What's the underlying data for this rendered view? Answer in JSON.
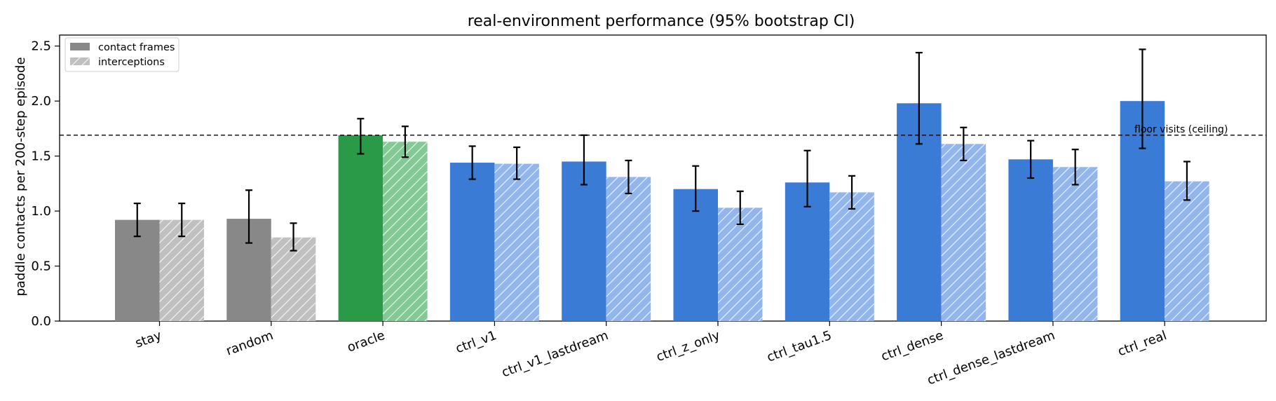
{
  "chart_data": {
    "type": "bar",
    "title": "real-environment performance (95% bootstrap CI)",
    "xlabel": "",
    "ylabel": "paddle contacts per 200-step episode",
    "ylim": [
      0,
      2.6
    ],
    "yticks": [
      "0.0",
      "0.5",
      "1.0",
      "1.5",
      "2.0",
      "2.5"
    ],
    "categories": [
      "stay",
      "random",
      "oracle",
      "ctrl_v1",
      "ctrl_v1_lastdream",
      "ctrl_z_only",
      "ctrl_tau1.5",
      "ctrl_dense",
      "ctrl_dense_lastdream",
      "ctrl_real"
    ],
    "series": [
      {
        "name": "contact frames",
        "values": [
          0.92,
          0.93,
          1.69,
          1.44,
          1.45,
          1.2,
          1.26,
          1.98,
          1.47,
          2.0
        ],
        "ci_low": [
          0.77,
          0.71,
          1.52,
          1.29,
          1.24,
          1.0,
          1.04,
          1.61,
          1.3,
          1.57
        ],
        "ci_high": [
          1.07,
          1.19,
          1.84,
          1.59,
          1.69,
          1.41,
          1.55,
          2.44,
          1.64,
          2.47
        ],
        "colors": [
          "#888888",
          "#888888",
          "#2a9a47",
          "#3a7bd5",
          "#3a7bd5",
          "#3a7bd5",
          "#3a7bd5",
          "#3a7bd5",
          "#3a7bd5",
          "#3a7bd5"
        ],
        "hatch": false
      },
      {
        "name": "interceptions",
        "values": [
          0.92,
          0.76,
          1.63,
          1.43,
          1.31,
          1.03,
          1.17,
          1.61,
          1.4,
          1.27
        ],
        "ci_low": [
          0.77,
          0.64,
          1.49,
          1.29,
          1.16,
          0.88,
          1.02,
          1.46,
          1.24,
          1.1
        ],
        "ci_high": [
          1.07,
          0.89,
          1.77,
          1.58,
          1.46,
          1.18,
          1.32,
          1.76,
          1.56,
          1.45
        ],
        "colors": [
          "#c0c0c0",
          "#c0c0c0",
          "#84c895",
          "#92b5ea",
          "#92b5ea",
          "#92b5ea",
          "#92b5ea",
          "#92b5ea",
          "#92b5ea",
          "#92b5ea"
        ],
        "hatch": true
      }
    ],
    "reference_line": {
      "value": 1.69,
      "label": "floor visits (ceiling)",
      "style": "dashed"
    },
    "legend": {
      "placement": "top-left",
      "entries": [
        {
          "label": "contact frames",
          "color": "#888888",
          "hatch": false
        },
        {
          "label": "interceptions",
          "color": "#c0c0c0",
          "hatch": true
        }
      ]
    },
    "grid": false
  }
}
